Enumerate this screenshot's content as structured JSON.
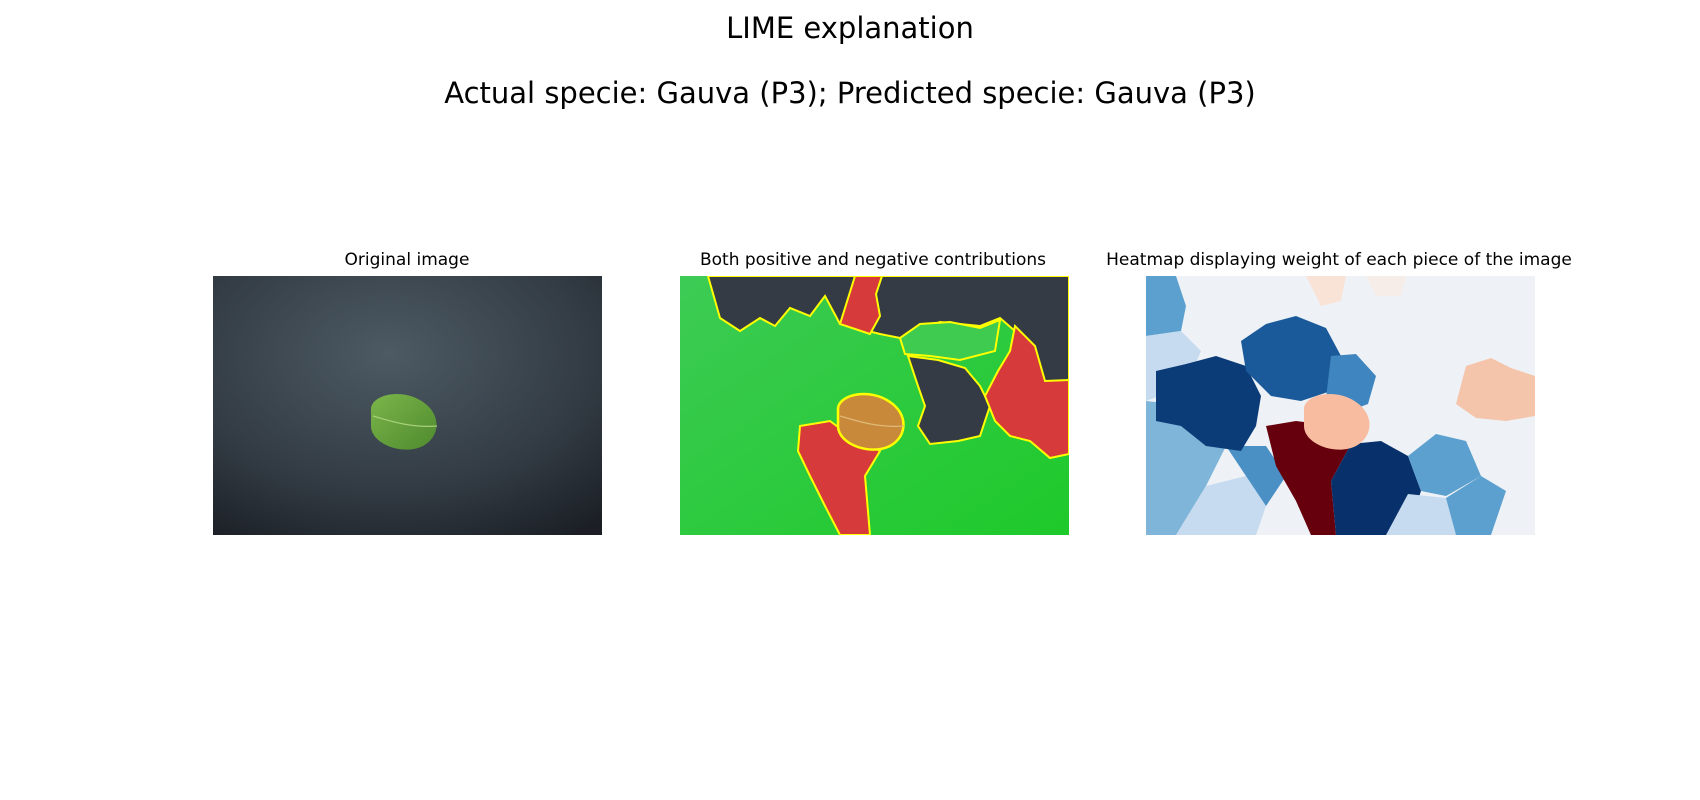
{
  "figure": {
    "suptitle": "LIME explanation",
    "subtitle": "Actual specie: Gauva (P3); Predicted specie: Gauva (P3)"
  },
  "panels": [
    {
      "title": "Original image"
    },
    {
      "title": "Both positive and negative contributions"
    },
    {
      "title": "Heatmap displaying weight of each piece of the image"
    }
  ],
  "colors": {
    "positive": "#33c94f",
    "negative": "#d63a3a",
    "boundary": "#ffff00",
    "heat_dark_blue": "#08306b",
    "heat_mid_blue": "#4a90c4",
    "heat_light_blue": "#c6dbef",
    "heat_dark_red": "#67000d",
    "heat_light_red": "#f4b89c"
  }
}
